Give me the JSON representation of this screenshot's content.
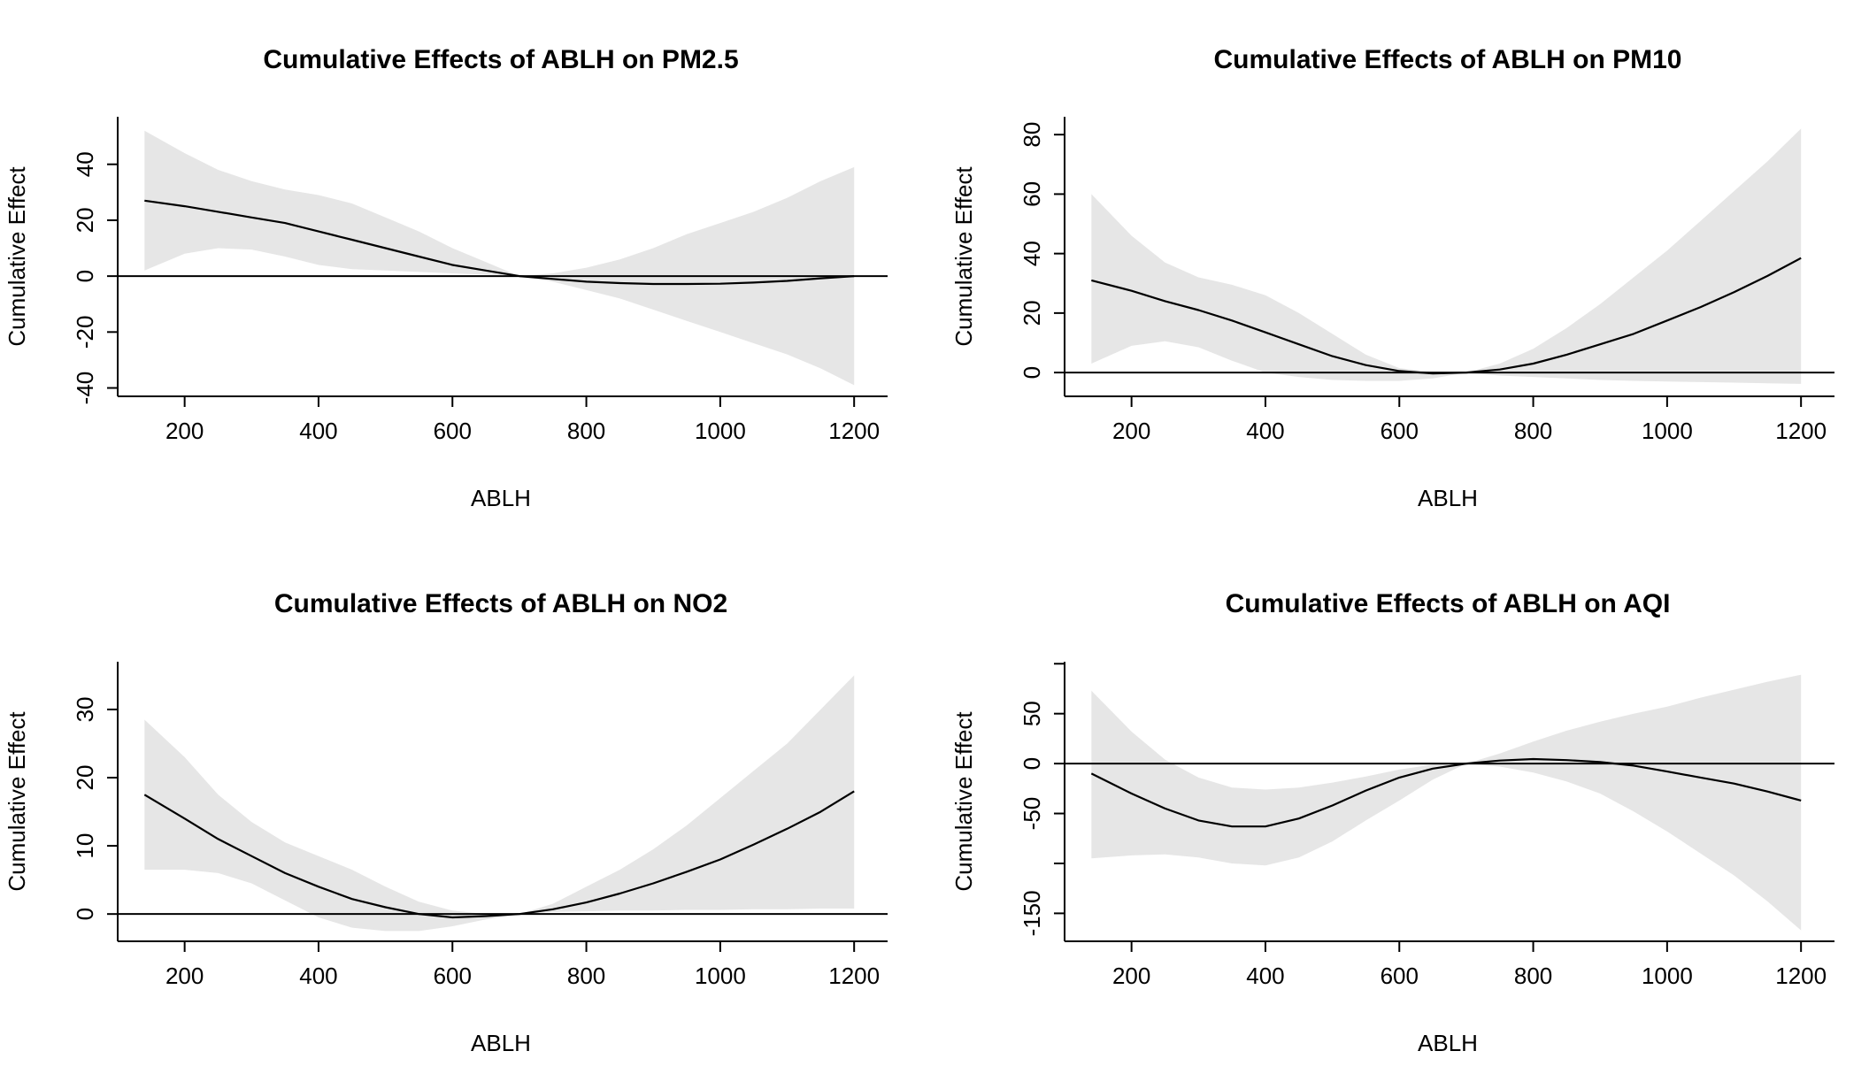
{
  "chart_data": [
    {
      "type": "area",
      "title": "Cumulative Effects of ABLH on PM2.5",
      "xlabel": "ABLH",
      "ylabel": "Cumulative Effect",
      "xlim": [
        100,
        1250
      ],
      "ylim": [
        -43,
        57
      ],
      "x_ticks": [
        200,
        400,
        600,
        800,
        1000,
        1200
      ],
      "y_ticks": [
        -40,
        -20,
        0,
        20,
        40
      ],
      "grid": false,
      "reference_line": 0,
      "colors": {
        "band": "#e6e6e6",
        "line": "#000000"
      },
      "x": [
        140,
        200,
        250,
        300,
        350,
        400,
        450,
        500,
        550,
        600,
        650,
        700,
        750,
        800,
        850,
        900,
        950,
        1000,
        1050,
        1100,
        1150,
        1200
      ],
      "y": [
        27,
        25,
        23,
        21,
        19,
        16,
        13,
        10,
        7,
        4,
        2,
        0,
        -1,
        -2,
        -2.5,
        -2.8,
        -2.8,
        -2.7,
        -2.3,
        -1.7,
        -0.8,
        0
      ],
      "lower": [
        2,
        8,
        10,
        9.5,
        7,
        4,
        2.5,
        2,
        1.5,
        1,
        0.5,
        0,
        -2,
        -5,
        -8,
        -12,
        -16,
        -20,
        -24,
        -28,
        -33,
        -39
      ],
      "upper": [
        52,
        44,
        38,
        34,
        31,
        29,
        26,
        21,
        16,
        10,
        5,
        0,
        1,
        3,
        6,
        10,
        15,
        19,
        23,
        28,
        34,
        39
      ]
    },
    {
      "type": "area",
      "title": "Cumulative Effects of ABLH on PM10",
      "xlabel": "ABLH",
      "ylabel": "Cumulative Effect",
      "xlim": [
        100,
        1250
      ],
      "ylim": [
        -8,
        86
      ],
      "x_ticks": [
        200,
        400,
        600,
        800,
        1000,
        1200
      ],
      "y_ticks": [
        0,
        20,
        40,
        60,
        80
      ],
      "grid": false,
      "reference_line": 0,
      "colors": {
        "band": "#e6e6e6",
        "line": "#000000"
      },
      "x": [
        140,
        200,
        250,
        300,
        350,
        400,
        450,
        500,
        550,
        600,
        650,
        700,
        750,
        800,
        850,
        900,
        950,
        1000,
        1050,
        1100,
        1150,
        1200
      ],
      "y": [
        31,
        27.5,
        24,
        21,
        17.5,
        13.5,
        9.5,
        5.5,
        2.5,
        0.5,
        -0.3,
        0,
        1,
        3,
        6,
        9.5,
        13,
        17.5,
        22,
        27,
        32.5,
        38.5
      ],
      "lower": [
        3,
        9,
        10.5,
        8.5,
        4,
        0,
        -1.5,
        -2.5,
        -2.8,
        -2.8,
        -2,
        0,
        -1,
        -1.5,
        -2,
        -2.5,
        -2.8,
        -3,
        -3.2,
        -3.4,
        -3.6,
        -3.8
      ],
      "upper": [
        60,
        46,
        37,
        32,
        29.5,
        26,
        20,
        13,
        6,
        1.5,
        0.2,
        0,
        3,
        8,
        15,
        23,
        32,
        41,
        51,
        61,
        71,
        82
      ]
    },
    {
      "type": "area",
      "title": "Cumulative Effects of ABLH on NO2",
      "xlabel": "ABLH",
      "ylabel": "Cumulative Effect",
      "xlim": [
        100,
        1250
      ],
      "ylim": [
        -4,
        37
      ],
      "x_ticks": [
        200,
        400,
        600,
        800,
        1000,
        1200
      ],
      "y_ticks": [
        0,
        10,
        20,
        30
      ],
      "grid": false,
      "reference_line": 0,
      "colors": {
        "band": "#e6e6e6",
        "line": "#000000"
      },
      "x": [
        140,
        200,
        250,
        300,
        350,
        400,
        450,
        500,
        550,
        600,
        650,
        700,
        750,
        800,
        850,
        900,
        950,
        1000,
        1050,
        1100,
        1150,
        1200
      ],
      "y": [
        17.5,
        14,
        11,
        8.5,
        6,
        4,
        2.2,
        1,
        0,
        -0.5,
        -0.3,
        0,
        0.7,
        1.7,
        3,
        4.5,
        6.2,
        8,
        10.2,
        12.5,
        15,
        18
      ],
      "lower": [
        6.5,
        6.5,
        6,
        4.5,
        2,
        -0.5,
        -2,
        -2.5,
        -2.5,
        -1.8,
        -0.8,
        0,
        0.3,
        0.4,
        0.5,
        0.5,
        0.6,
        0.6,
        0.7,
        0.7,
        0.8,
        0.8
      ],
      "upper": [
        28.5,
        23,
        17.5,
        13.5,
        10.5,
        8.5,
        6.5,
        4,
        1.8,
        0.5,
        0,
        0,
        1.5,
        4,
        6.5,
        9.5,
        13,
        17,
        21,
        25,
        30,
        35
      ]
    },
    {
      "type": "area",
      "title": "Cumulative Effects of ABLH on AQI",
      "xlabel": "ABLH",
      "ylabel": "Cumulative Effect",
      "xlim": [
        100,
        1250
      ],
      "ylim": [
        -178,
        102
      ],
      "x_ticks": [
        200,
        400,
        600,
        800,
        1000,
        1200
      ],
      "y_ticks": [
        -150,
        -100,
        -50,
        0,
        50,
        100
      ],
      "y_tick_labels": [
        "-150",
        "",
        "-50",
        "0",
        "50",
        ""
      ],
      "grid": false,
      "reference_line": 0,
      "colors": {
        "band": "#e6e6e6",
        "line": "#000000"
      },
      "x": [
        140,
        200,
        250,
        300,
        350,
        400,
        450,
        500,
        550,
        600,
        650,
        700,
        750,
        800,
        850,
        900,
        950,
        1000,
        1050,
        1100,
        1150,
        1200
      ],
      "y": [
        -10,
        -30,
        -45,
        -57,
        -63,
        -63,
        -55,
        -42,
        -27,
        -14,
        -5,
        0,
        3,
        4.5,
        3.5,
        1.5,
        -2,
        -8,
        -14,
        -20,
        -28,
        -37
      ],
      "lower": [
        -95,
        -92,
        -91,
        -94,
        -100,
        -102,
        -94,
        -78,
        -57,
        -37,
        -16,
        0,
        -3,
        -9,
        -18,
        -30,
        -48,
        -68,
        -90,
        -112,
        -138,
        -167
      ],
      "upper": [
        73,
        32,
        4,
        -14,
        -24,
        -26,
        -24,
        -19,
        -13,
        -6,
        -1,
        0,
        10,
        22,
        33,
        42,
        50,
        57,
        66,
        74,
        82,
        89
      ]
    }
  ]
}
